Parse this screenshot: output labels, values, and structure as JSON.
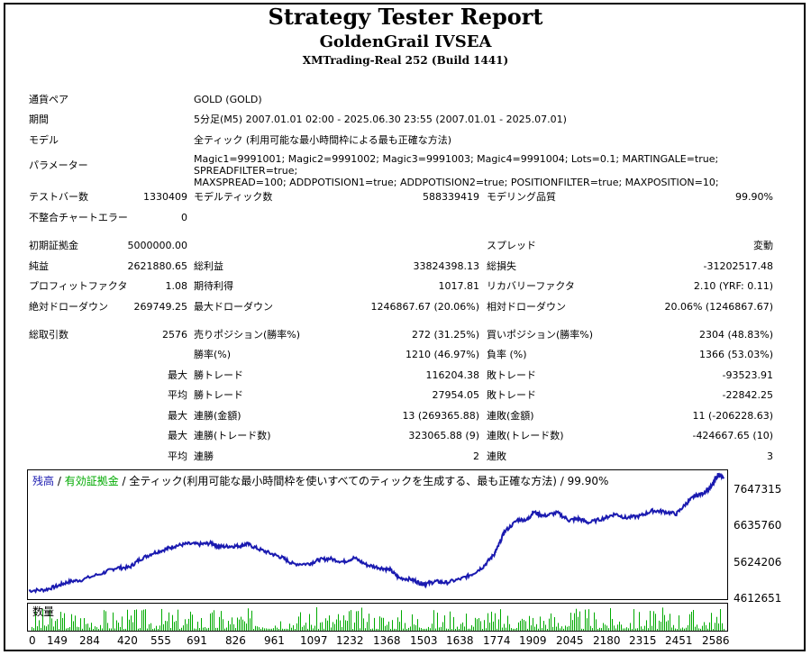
{
  "header": {
    "title": "Strategy Tester Report",
    "ea_name": "GoldenGrail IVSEA",
    "server": "XMTrading-Real 252 (Build 1441)"
  },
  "info": {
    "pair_label": "通貨ペア",
    "pair_value": "GOLD (GOLD)",
    "period_label": "期間",
    "period_value": "5分足(M5) 2007.01.01 02:00 - 2025.06.30 23:55 (2007.01.01 - 2025.07.01)",
    "model_label": "モデル",
    "model_value": "全ティック (利用可能な最小時間枠による最も正確な方法)",
    "params_label": "パラメーター",
    "params_line1": "Magic1=9991001; Magic2=9991002; Magic3=9991003; Magic4=9991004; Lots=0.1; MARTINGALE=true; SPREADFILTER=true;",
    "params_line2": "MAXSPREAD=100; ADDPOTISION1=true; ADDPOTISION2=true; POSITIONFILTER=true; MAXPOSITION=10;"
  },
  "stats": {
    "bars_label": "テストバー数",
    "bars_value": "1330409",
    "ticks_label": "モデルティック数",
    "ticks_value": "588339419",
    "quality_label": "モデリング品質",
    "quality_value": "99.90%",
    "mismatch_label": "不整合チャートエラー",
    "mismatch_value": "0",
    "deposit_label": "初期証拠金",
    "deposit_value": "5000000.00",
    "spread_label": "スプレッド",
    "spread_value": "変動",
    "net_label": "純益",
    "net_value": "2621880.65",
    "gross_profit_label": "総利益",
    "gross_profit_value": "33824398.13",
    "gross_loss_label": "総損失",
    "gross_loss_value": "-31202517.48",
    "pf_label": "プロフィットファクタ",
    "pf_value": "1.08",
    "expected_label": "期待利得",
    "expected_value": "1017.81",
    "recovery_label": "リカバリーファクタ",
    "recovery_value": "2.10 (YRF: 0.11)",
    "abs_dd_label": "絶対ドローダウン",
    "abs_dd_value": "269749.25",
    "max_dd_label": "最大ドローダウン",
    "max_dd_value": "1246867.67 (20.06%)",
    "rel_dd_label": "相対ドローダウン",
    "rel_dd_value": "20.06% (1246867.67)",
    "total_trades_label": "総取引数",
    "total_trades_value": "2576",
    "short_label": "売りポジション(勝率%)",
    "short_value": "272 (31.25%)",
    "long_label": "買いポジション(勝率%)",
    "long_value": "2304 (48.83%)",
    "win_label": "勝率(%)",
    "win_value": "1210 (46.97%)",
    "loss_label": "負率 (%)",
    "loss_value": "1366 (53.03%)",
    "max_word": "最大",
    "avg_word": "平均",
    "max_win_label": "勝トレード",
    "max_win_value": "116204.38",
    "max_loss_label": "敗トレード",
    "max_loss_value": "-93523.91",
    "avg_win_label": "勝トレード",
    "avg_win_value": "27954.05",
    "avg_loss_label": "敗トレード",
    "avg_loss_value": "-22842.25",
    "max_consec_win_label": "連勝(金額)",
    "max_consec_win_value": "13 (269365.88)",
    "max_consec_loss_label": "連敗(金額)",
    "max_consec_loss_value": "11 (-206228.63)",
    "max_consec_profit_label": "連勝(トレード数)",
    "max_consec_profit_value": "323065.88 (9)",
    "max_consec_lossamt_label": "連敗(トレード数)",
    "max_consec_lossamt_value": "-424667.65 (10)",
    "avg_consec_win_label": "連勝",
    "avg_consec_win_value": "2",
    "avg_consec_loss_label": "連敗",
    "avg_consec_loss_value": "3"
  },
  "chart_legend": {
    "balance": "残高",
    "sep1": " / ",
    "equity": "有効証拠金",
    "sep2": " / ",
    "rest": "全ティック(利用可能な最小時間枠を使いすべてのティックを生成する、最も正確な方法) / 99.90%",
    "volume_label": "数量"
  },
  "colors": {
    "balance": "#1a1ab0",
    "equity": "#00aa00",
    "volume": "#00aa00"
  },
  "chart_data": {
    "type": "line",
    "y_ticks": [
      "7647315",
      "6635760",
      "5624206",
      "4612651"
    ],
    "x_ticks": [
      "0",
      "149",
      "284",
      "420",
      "555",
      "691",
      "826",
      "961",
      "1097",
      "1232",
      "1368",
      "1503",
      "1638",
      "1774",
      "1909",
      "2045",
      "2180",
      "2315",
      "2451",
      "2586"
    ],
    "ylim": [
      4612651,
      7700000
    ],
    "xlim": [
      0,
      2640
    ],
    "series": [
      {
        "name": "残高",
        "x": [
          0,
          60,
          110,
          149,
          200,
          284,
          330,
          380,
          420,
          470,
          520,
          555,
          600,
          650,
          691,
          720,
          760,
          800,
          826,
          870,
          920,
          961,
          1000,
          1060,
          1097,
          1140,
          1190,
          1232,
          1280,
          1330,
          1368,
          1400,
          1450,
          1480,
          1503,
          1540,
          1580,
          1638,
          1680,
          1720,
          1760,
          1774,
          1800,
          1850,
          1890,
          1909,
          1950,
          2000,
          2045,
          2080,
          2120,
          2180,
          2220,
          2260,
          2315,
          2360,
          2400,
          2451,
          2490,
          2520,
          2550,
          2586,
          2610,
          2630
        ],
        "y": [
          4780000,
          4800000,
          4900000,
          5000000,
          5050000,
          5230000,
          5350000,
          5360000,
          5560000,
          5720000,
          5820000,
          5900000,
          5950000,
          5940000,
          5970000,
          5880000,
          5890000,
          5900000,
          5950000,
          5820000,
          5700000,
          5600000,
          5450000,
          5450000,
          5550000,
          5580000,
          5500000,
          5600000,
          5420000,
          5350000,
          5300000,
          5100000,
          5060000,
          4970000,
          4950000,
          5010000,
          4980000,
          5080000,
          5200000,
          5380000,
          5680000,
          5850000,
          6250000,
          6550000,
          6560000,
          6750000,
          6650000,
          6730000,
          6540000,
          6580000,
          6480000,
          6600000,
          6700000,
          6600000,
          6650000,
          6780000,
          6760000,
          6700000,
          6970000,
          7150000,
          7210000,
          7400000,
          7700000,
          7580000
        ]
      }
    ],
    "volume": {
      "name": "数量"
    }
  }
}
